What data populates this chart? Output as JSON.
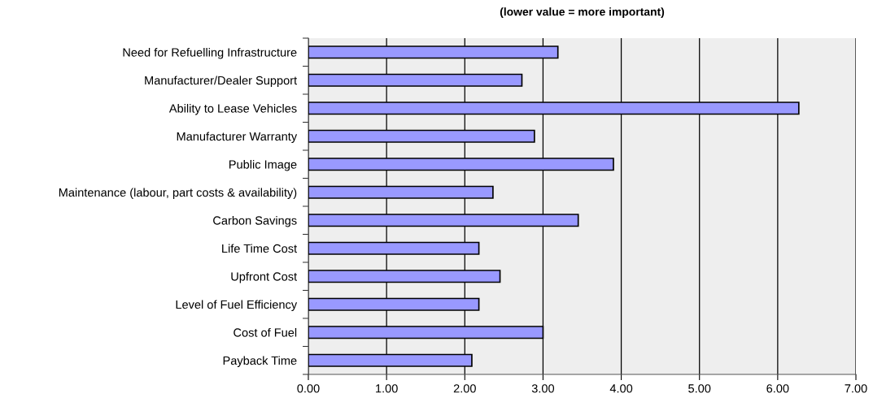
{
  "chart_data": {
    "type": "bar",
    "orientation": "horizontal",
    "title": "(lower value = more important)",
    "categories": [
      "Need for Refuelling Infrastructure",
      "Manufacturer/Dealer Support",
      "Ability to Lease Vehicles",
      "Manufacturer Warranty",
      "Public Image",
      "Maintenance (labour, part costs & availability)",
      "Carbon Savings",
      "Life Time Cost",
      "Upfront Cost",
      "Level of Fuel Efficiency",
      "Cost of Fuel",
      "Payback Time"
    ],
    "values": [
      3.19,
      2.73,
      6.27,
      2.89,
      3.9,
      2.36,
      3.45,
      2.18,
      2.45,
      2.18,
      3.0,
      2.09
    ],
    "color": "#9999ff",
    "xlim": [
      0,
      7
    ],
    "xticks": [
      {
        "value": 0,
        "label": "0.00"
      },
      {
        "value": 1,
        "label": "1.00"
      },
      {
        "value": 2,
        "label": "2.00"
      },
      {
        "value": 3,
        "label": "3.00"
      },
      {
        "value": 4,
        "label": "4.00"
      },
      {
        "value": 5,
        "label": "5.00"
      },
      {
        "value": 6,
        "label": "6.00"
      },
      {
        "value": 7,
        "label": "7.00"
      }
    ],
    "grid": "x",
    "legend": false
  }
}
